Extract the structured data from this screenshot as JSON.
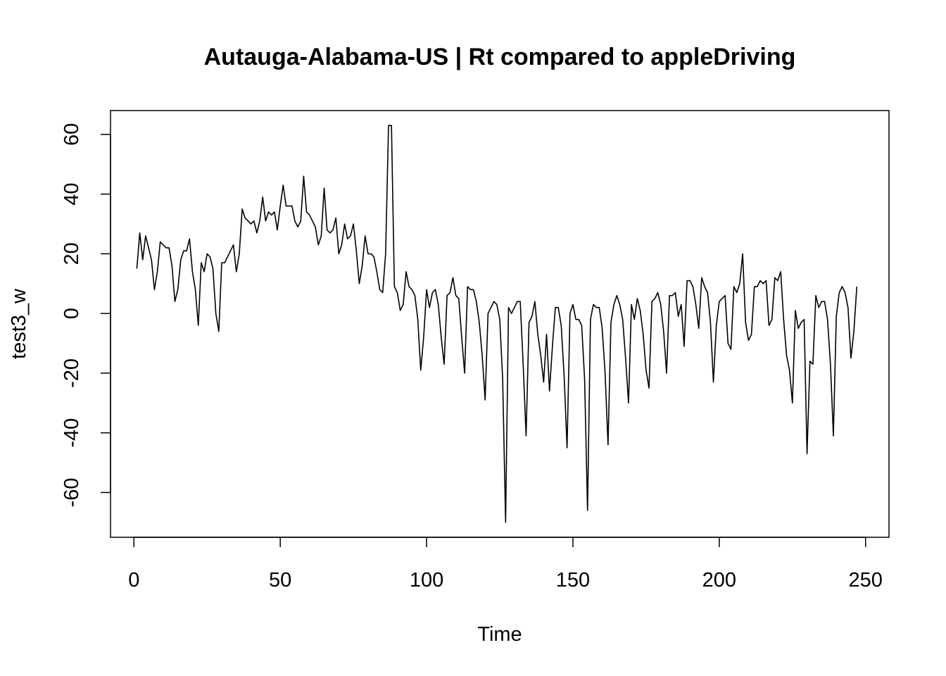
{
  "chart_data": {
    "type": "line",
    "title": "Autauga-Alabama-US | Rt compared to appleDriving",
    "xlabel": "Time",
    "ylabel": "test3_w",
    "xlim": [
      -8,
      258
    ],
    "ylim": [
      -75,
      68
    ],
    "xticks": [
      0,
      50,
      100,
      150,
      200,
      250
    ],
    "yticks": [
      -60,
      -40,
      -20,
      0,
      20,
      40,
      60
    ],
    "grid": false,
    "series": [
      {
        "values": [
          15,
          27,
          18,
          26,
          22,
          18,
          8,
          14,
          24,
          23,
          22,
          22,
          16,
          4,
          8,
          18,
          21,
          21,
          25,
          14,
          8,
          -4,
          17,
          14,
          20,
          19,
          15,
          0,
          -6,
          17,
          17,
          19,
          21,
          23,
          14,
          20,
          35,
          32,
          31,
          30,
          31,
          27,
          31,
          39,
          31,
          34,
          33,
          34,
          28,
          36,
          43,
          36,
          36,
          36,
          31,
          29,
          31,
          46,
          34,
          33,
          31,
          29,
          23,
          26,
          42,
          28,
          27,
          28,
          32,
          20,
          23,
          30,
          25,
          26,
          30,
          21,
          10,
          16,
          26,
          20,
          20,
          19,
          14,
          8,
          7,
          20,
          63,
          63,
          9,
          7,
          1,
          3,
          14,
          9,
          8,
          6,
          -2,
          -19,
          -8,
          8,
          2,
          7,
          8,
          3,
          -8,
          -17,
          6,
          7,
          12,
          6,
          5,
          -8,
          -20,
          9,
          8,
          8,
          4,
          -3,
          -14,
          -29,
          0,
          2,
          4,
          3,
          -2,
          -22,
          -70,
          2,
          0,
          2,
          4,
          4,
          -17,
          -41,
          -3,
          -1,
          4,
          -7,
          -14,
          -23,
          -7,
          -26,
          -11,
          2,
          2,
          -4,
          -21,
          -45,
          0,
          3,
          -2,
          -2,
          -4,
          -22,
          -66,
          -2,
          3,
          2,
          2,
          -5,
          -20,
          -44,
          -3,
          3,
          6,
          3,
          -2,
          -15,
          -30,
          3,
          -2,
          5,
          1,
          -7,
          -19,
          -25,
          4,
          5,
          7,
          3,
          -6,
          -20,
          6,
          6,
          7,
          -1,
          3,
          -11,
          11,
          11,
          9,
          3,
          -5,
          12,
          9,
          7,
          -3,
          -23,
          -4,
          4,
          5,
          6,
          -10,
          -12,
          9,
          7,
          10,
          20,
          -3,
          -9,
          -7,
          9,
          9,
          11,
          10,
          11,
          -4,
          -2,
          12,
          11,
          14,
          -2,
          -14,
          -19,
          -30,
          1,
          -5,
          -3,
          -2,
          -47,
          -16,
          -17,
          6,
          2,
          4,
          4,
          -2,
          -17,
          -41,
          -1,
          7,
          9,
          7,
          2,
          -15,
          -6,
          9
        ]
      }
    ]
  }
}
